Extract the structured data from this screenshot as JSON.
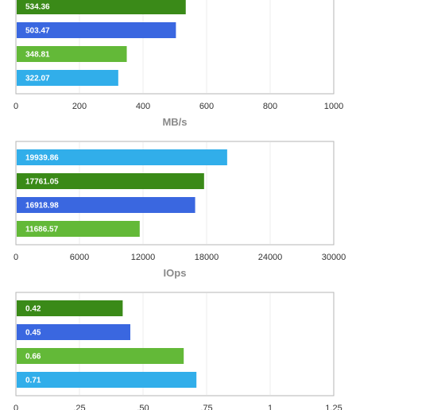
{
  "chart_data": [
    {
      "type": "bar",
      "orientation": "horizontal",
      "categories": [
        "",
        "",
        "",
        ""
      ],
      "values": [
        534.36,
        503.47,
        348.81,
        322.07
      ],
      "value_labels": [
        "534.36",
        "503.47",
        "348.81",
        "322.07"
      ],
      "bar_colors": [
        "#3a8a18",
        "#3a67e0",
        "#63b938",
        "#31aeea"
      ],
      "xlim": [
        0,
        1000
      ],
      "xticks": [
        "0",
        "200",
        "400",
        "600",
        "800",
        "1000"
      ],
      "xlabel": "MB/s",
      "title": "",
      "grid": "vertical"
    },
    {
      "type": "bar",
      "orientation": "horizontal",
      "categories": [
        "",
        "",
        "",
        ""
      ],
      "values": [
        19939.86,
        17761.05,
        16918.98,
        11686.57
      ],
      "value_labels": [
        "19939.86",
        "17761.05",
        "16918.98",
        "11686.57"
      ],
      "bar_colors": [
        "#31aeea",
        "#3a8a18",
        "#3a67e0",
        "#63b938"
      ],
      "xlim": [
        0,
        30000
      ],
      "xticks": [
        "0",
        "6000",
        "12000",
        "18000",
        "24000",
        "30000"
      ],
      "xlabel": "IOps",
      "title": "",
      "grid": "vertical"
    },
    {
      "type": "bar",
      "orientation": "horizontal",
      "categories": [
        "",
        "",
        "",
        ""
      ],
      "values": [
        0.42,
        0.45,
        0.66,
        0.71
      ],
      "value_labels": [
        "0.42",
        "0.45",
        "0.66",
        "0.71"
      ],
      "bar_colors": [
        "#3a8a18",
        "#3a67e0",
        "#63b938",
        "#31aeea"
      ],
      "xlim": [
        0,
        1.25
      ],
      "xticks": [
        "0",
        ".25",
        ".50",
        ".75",
        "1",
        "1.25"
      ],
      "xlabel": "",
      "title": "",
      "grid": "vertical"
    }
  ]
}
